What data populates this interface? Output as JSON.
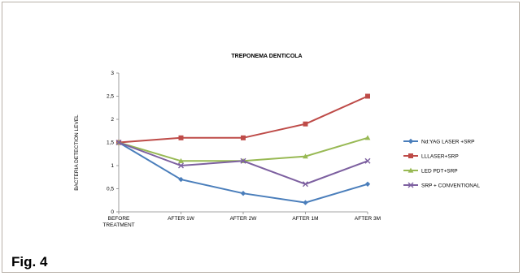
{
  "figure": {
    "caption": "Fig. 4"
  },
  "chart_data": {
    "type": "line",
    "title": "TREPONEMA DENTICOLA",
    "ylabel": "BACTERIA DETECTION LEVEL",
    "xlabel": "",
    "categories": [
      [
        "BEFORE",
        "TREATMENT"
      ],
      [
        "AFTER 1W"
      ],
      [
        "AFTER 2W"
      ],
      [
        "AFTER 1M"
      ],
      [
        "AFTER 3M"
      ]
    ],
    "ylim": [
      0,
      3
    ],
    "yticks": [
      "0",
      "0,5",
      "1",
      "1,5",
      "2",
      "2,5",
      "3"
    ],
    "grid": false,
    "legend_position": "right",
    "series": [
      {
        "name": "Nd:YAG LASER +SRP",
        "color": "#4a7ebb",
        "marker": "diamond",
        "values": [
          1.5,
          0.7,
          0.4,
          0.2,
          0.6
        ]
      },
      {
        "name": "LLLASER+SRP",
        "color": "#be4b48",
        "marker": "square",
        "values": [
          1.5,
          1.6,
          1.6,
          1.9,
          2.5
        ]
      },
      {
        "name": "LED PDT+SRP",
        "color": "#98b954",
        "marker": "triangle",
        "values": [
          1.5,
          1.1,
          1.1,
          1.2,
          1.6
        ]
      },
      {
        "name": "SRP + CONVENTIONAL",
        "color": "#7d60a0",
        "marker": "x",
        "values": [
          1.5,
          1.0,
          1.1,
          0.6,
          1.1
        ]
      }
    ]
  }
}
